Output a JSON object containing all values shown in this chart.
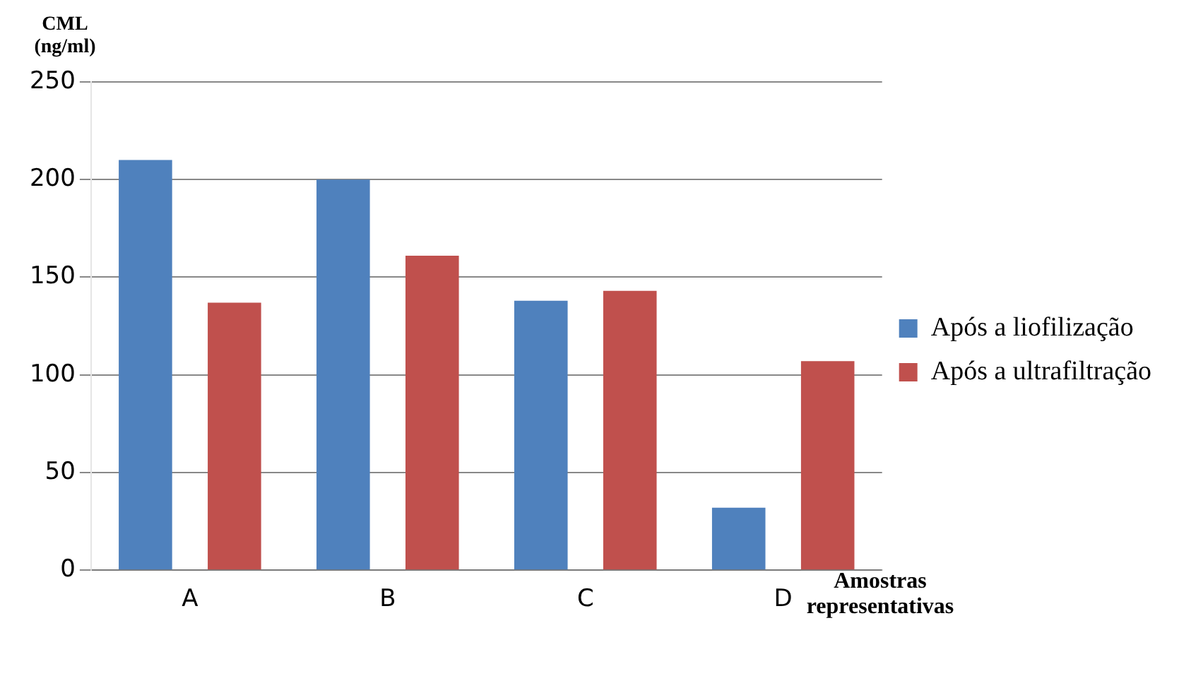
{
  "chart_data": {
    "type": "bar",
    "ylabel": "CML (ng/ml)",
    "xlabel": "Amostras representativas",
    "categories": [
      "A",
      "B",
      "C",
      "D"
    ],
    "series": [
      {
        "name": "Após a liofilização",
        "color": "#4f81bd",
        "values": [
          210,
          200,
          138,
          32
        ]
      },
      {
        "name": "Após a ultrafiltração",
        "color": "#c0504d",
        "values": [
          137,
          161,
          143,
          107
        ]
      }
    ],
    "ylim": [
      0,
      250
    ],
    "yticks": [
      0,
      50,
      100,
      150,
      200,
      250
    ],
    "grid": "y",
    "legend": "right"
  }
}
